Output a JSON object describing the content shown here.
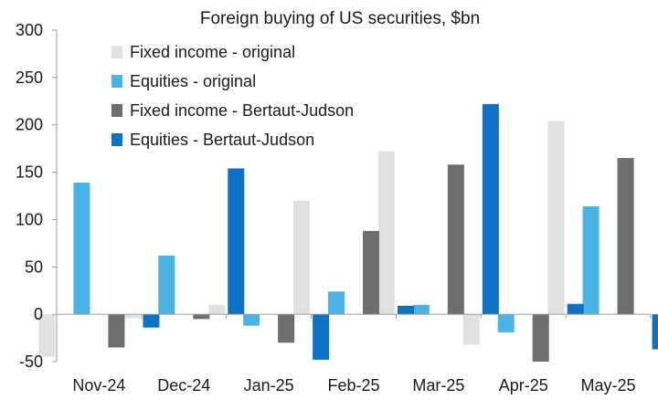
{
  "chart_data": {
    "type": "bar",
    "title": "Foreign buying of US securities, $bn",
    "xlabel": "",
    "ylabel": "",
    "ylim": [
      -50,
      300
    ],
    "yticks": [
      -50,
      0,
      50,
      100,
      150,
      200,
      250,
      300
    ],
    "grid": false,
    "legend_position": "top-left",
    "categories": [
      "Nov-24",
      "Dec-24",
      "Jan-25",
      "Feb-25",
      "Mar-25",
      "Apr-25",
      "May-25"
    ],
    "series": [
      {
        "name": "Fixed income - original",
        "color": "#e1e1e1",
        "values": [
          -45,
          -4,
          10,
          120,
          172,
          -32,
          204
        ]
      },
      {
        "name": "Equities - original",
        "color": "#49b3e6",
        "values": [
          139,
          62,
          -12,
          24,
          10,
          -19,
          114
        ]
      },
      {
        "name": "Fixed income - Bertaut-Judson",
        "color": "#6e6e6e",
        "values": [
          -35,
          -5,
          -30,
          88,
          158,
          -50,
          165
        ]
      },
      {
        "name": "Equities - Bertaut-Judson",
        "color": "#0e72c4",
        "values": [
          -14,
          154,
          -48,
          9,
          222,
          11,
          -37
        ]
      }
    ]
  }
}
